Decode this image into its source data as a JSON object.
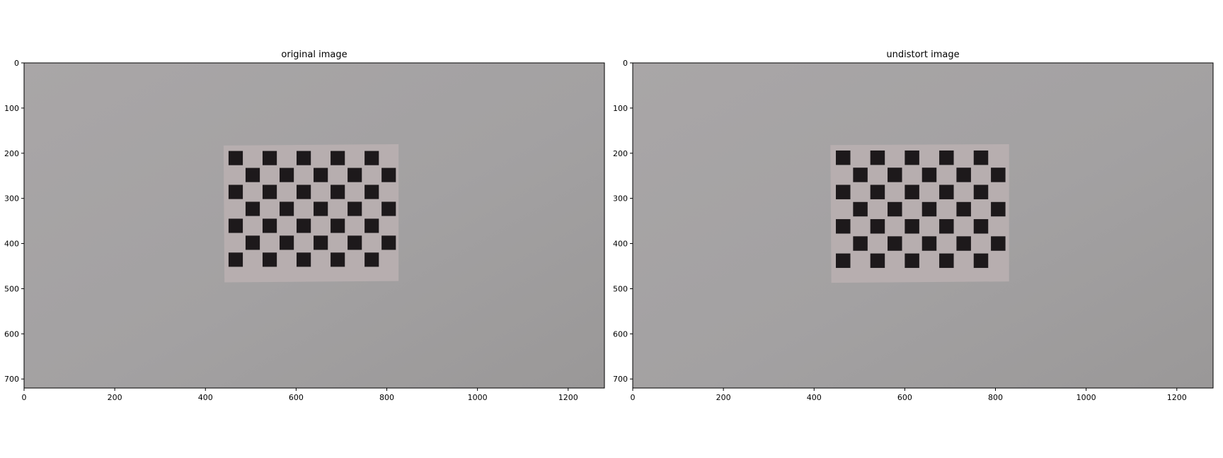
{
  "panels": [
    {
      "title": "original image",
      "x_ticks": [
        "0",
        "200",
        "400",
        "600",
        "800",
        "1000",
        "1200"
      ],
      "y_ticks": [
        "0",
        "100",
        "200",
        "300",
        "400",
        "500",
        "600",
        "700"
      ],
      "xlim": [
        0,
        1280
      ],
      "ylim": [
        720,
        0
      ]
    },
    {
      "title": "undistort image",
      "x_ticks": [
        "0",
        "200",
        "400",
        "600",
        "800",
        "1000",
        "1200"
      ],
      "y_ticks": [
        "0",
        "100",
        "200",
        "300",
        "400",
        "500",
        "600",
        "700"
      ],
      "xlim": [
        0,
        1280
      ],
      "ylim": [
        720,
        0
      ]
    }
  ],
  "colors": {
    "wall": "#a9a6a7",
    "wall_dark": "#9a9898",
    "paper": "#b7aeaf",
    "square": "#1d191b"
  }
}
